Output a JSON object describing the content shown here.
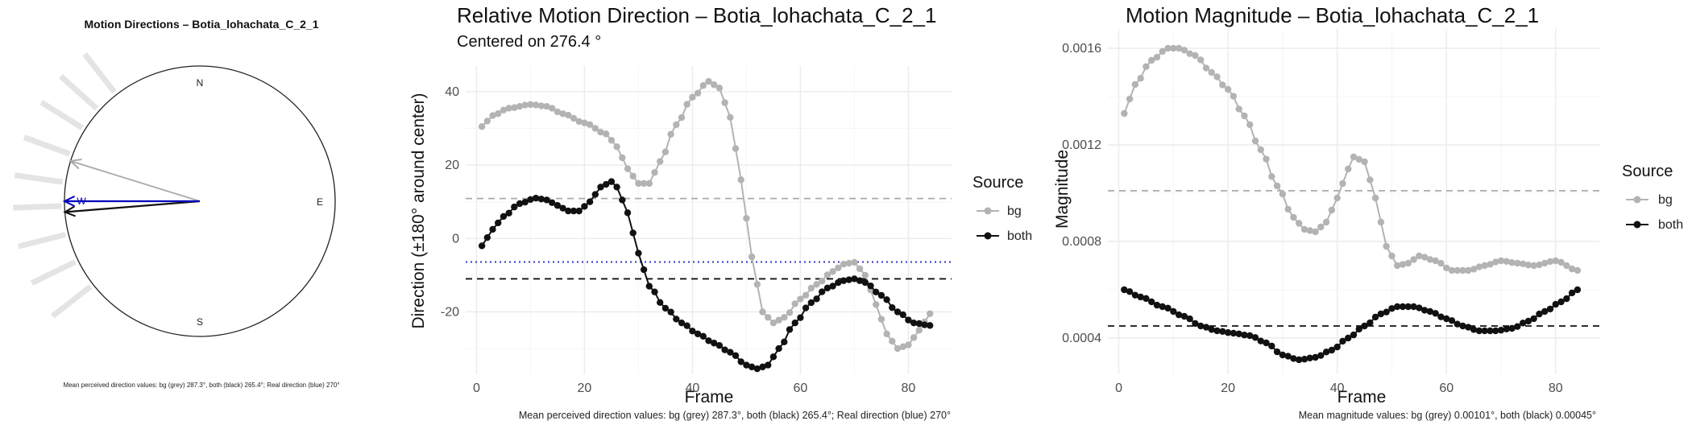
{
  "chart_data": [
    {
      "type": "compass",
      "title": "Motion Directions – Botia_lohachata_C_2_1",
      "cardinals": [
        "N",
        "E",
        "S",
        "W"
      ],
      "arrows": [
        {
          "name": "bg",
          "direction_deg": 287.3,
          "color": "#aaaaaa"
        },
        {
          "name": "both",
          "direction_deg": 265.4,
          "color": "#111111"
        },
        {
          "name": "real",
          "direction_deg": 270,
          "color": "#0000bb"
        }
      ],
      "rays_deg": [
        232,
        244,
        256,
        268,
        278,
        290,
        302,
        312,
        322
      ],
      "caption": "Mean perceived direction values: bg (grey) 287.3°, both (black) 265.4°; Real direction (blue) 270°"
    },
    {
      "type": "line",
      "title": "Relative Motion Direction – Botia_lohachata_C_2_1",
      "subtitle": "Centered on  276.4 °",
      "xlabel": "Frame",
      "ylabel": "Direction (±180° around center)",
      "xlim": [
        -2,
        88
      ],
      "ylim": [
        -37,
        47
      ],
      "xticks": [
        0,
        20,
        40,
        60,
        80
      ],
      "yticks": [
        -20,
        0,
        20,
        40
      ],
      "legend": {
        "title": "Source",
        "position": "right"
      },
      "hlines": [
        {
          "y": 10.9,
          "color": "#aaaaaa",
          "style": "dashed"
        },
        {
          "y": -6.4,
          "color": "#3333cc",
          "style": "dotted"
        },
        {
          "y": -11.0,
          "color": "#111111",
          "style": "dashed"
        }
      ],
      "series": [
        {
          "name": "bg",
          "color": "#b3b3b3",
          "keyframes": [
            [
              1,
              30.5
            ],
            [
              3,
              33.5
            ],
            [
              6,
              35.5
            ],
            [
              10,
              36.5
            ],
            [
              13,
              36
            ],
            [
              16,
              34
            ],
            [
              20,
              31.5
            ],
            [
              24,
              28.5
            ],
            [
              26,
              25
            ],
            [
              28,
              19
            ],
            [
              30,
              15
            ],
            [
              32,
              15
            ],
            [
              34,
              21
            ],
            [
              37,
              31
            ],
            [
              40,
              38.5
            ],
            [
              43,
              42.8
            ],
            [
              45,
              41
            ],
            [
              47,
              33
            ],
            [
              49,
              16
            ],
            [
              51,
              -5
            ],
            [
              53,
              -20
            ],
            [
              55,
              -23
            ],
            [
              57,
              -21.5
            ],
            [
              60,
              -16.5
            ],
            [
              63,
              -12.5
            ],
            [
              66,
              -9
            ],
            [
              68,
              -7
            ],
            [
              70,
              -6.5
            ],
            [
              72,
              -10
            ],
            [
              74,
              -18
            ],
            [
              76,
              -26
            ],
            [
              78,
              -30
            ],
            [
              80,
              -29
            ],
            [
              82,
              -25
            ],
            [
              84,
              -20.5
            ]
          ]
        },
        {
          "name": "both",
          "color": "#111111",
          "keyframes": [
            [
              1,
              -2
            ],
            [
              3,
              2.5
            ],
            [
              5,
              6
            ],
            [
              8,
              9.5
            ],
            [
              11,
              11
            ],
            [
              13,
              10.5
            ],
            [
              15,
              9
            ],
            [
              17,
              7.5
            ],
            [
              19,
              7.5
            ],
            [
              21,
              10
            ],
            [
              23,
              14
            ],
            [
              25,
              15.5
            ],
            [
              26,
              14
            ],
            [
              28,
              7
            ],
            [
              30,
              -4
            ],
            [
              32,
              -13
            ],
            [
              35,
              -19
            ],
            [
              38,
              -23
            ],
            [
              41,
              -26
            ],
            [
              44,
              -28.5
            ],
            [
              47,
              -31
            ],
            [
              50,
              -34.5
            ],
            [
              52,
              -35.5
            ],
            [
              54,
              -34.5
            ],
            [
              56,
              -30
            ],
            [
              59,
              -23
            ],
            [
              62,
              -17.5
            ],
            [
              65,
              -13.5
            ],
            [
              68,
              -11.5
            ],
            [
              70,
              -11
            ],
            [
              72,
              -12
            ],
            [
              75,
              -15.5
            ],
            [
              78,
              -20
            ],
            [
              81,
              -23
            ],
            [
              84,
              -23.7
            ]
          ]
        }
      ]
    },
    {
      "type": "line",
      "title": "Motion Magnitude – Botia_lohachata_C_2_1",
      "xlabel": "Frame",
      "ylabel": "Magnitude",
      "xlim": [
        -2,
        88
      ],
      "ylim": [
        0.00025,
        0.00168
      ],
      "xticks": [
        0,
        20,
        40,
        60,
        80
      ],
      "yticks": [
        0.0004,
        0.0008,
        0.0012,
        0.0016
      ],
      "ytick_labels": [
        "0.0004",
        "0.0008",
        "0.0012",
        "0.0016"
      ],
      "legend": {
        "title": "Source",
        "position": "right"
      },
      "hlines": [
        {
          "y": 0.00101,
          "color": "#aaaaaa",
          "style": "dashed"
        },
        {
          "y": 0.00045,
          "color": "#111111",
          "style": "dashed"
        }
      ],
      "series": [
        {
          "name": "bg",
          "color": "#b3b3b3",
          "keyframes": [
            [
              1,
              0.00133
            ],
            [
              3,
              0.00145
            ],
            [
              6,
              0.00155
            ],
            [
              9,
              0.0016
            ],
            [
              11,
              0.0016
            ],
            [
              14,
              0.00157
            ],
            [
              17,
              0.0015
            ],
            [
              20,
              0.00143
            ],
            [
              23,
              0.00132
            ],
            [
              26,
              0.00118
            ],
            [
              29,
              0.00103
            ],
            [
              32,
              0.0009
            ],
            [
              34,
              0.00085
            ],
            [
              36,
              0.00084
            ],
            [
              38,
              0.00088
            ],
            [
              40,
              0.00098
            ],
            [
              42,
              0.0011
            ],
            [
              43,
              0.00115
            ],
            [
              45,
              0.00113
            ],
            [
              47,
              0.00098
            ],
            [
              49,
              0.00078
            ],
            [
              51,
              0.0007
            ],
            [
              53,
              0.00071
            ],
            [
              55,
              0.00074
            ],
            [
              58,
              0.00072
            ],
            [
              61,
              0.00068
            ],
            [
              64,
              0.00068
            ],
            [
              67,
              0.0007
            ],
            [
              70,
              0.00072
            ],
            [
              73,
              0.00071
            ],
            [
              76,
              0.0007
            ],
            [
              80,
              0.00072
            ],
            [
              84,
              0.00068
            ]
          ]
        },
        {
          "name": "both",
          "color": "#111111",
          "keyframes": [
            [
              1,
              0.0006
            ],
            [
              4,
              0.00057
            ],
            [
              8,
              0.00053
            ],
            [
              12,
              0.00049
            ],
            [
              15,
              0.00045
            ],
            [
              18,
              0.00043
            ],
            [
              21,
              0.00042
            ],
            [
              24,
              0.00041
            ],
            [
              27,
              0.00038
            ],
            [
              30,
              0.00033
            ],
            [
              33,
              0.00031
            ],
            [
              36,
              0.00032
            ],
            [
              39,
              0.00035
            ],
            [
              42,
              0.0004
            ],
            [
              45,
              0.00045
            ],
            [
              48,
              0.0005
            ],
            [
              51,
              0.00053
            ],
            [
              54,
              0.00053
            ],
            [
              57,
              0.00051
            ],
            [
              60,
              0.00048
            ],
            [
              63,
              0.00045
            ],
            [
              66,
              0.00043
            ],
            [
              69,
              0.00043
            ],
            [
              72,
              0.00044
            ],
            [
              75,
              0.00047
            ],
            [
              78,
              0.00051
            ],
            [
              81,
              0.00055
            ],
            [
              84,
              0.0006
            ]
          ]
        }
      ],
      "caption": "Mean magnitude values: bg (grey) 0.00101°, both (black) 0.00045°"
    }
  ],
  "panel2_caption": "Mean perceived direction values: bg (grey) 287.3°, both (black) 265.4°; Real direction (blue) 270°"
}
